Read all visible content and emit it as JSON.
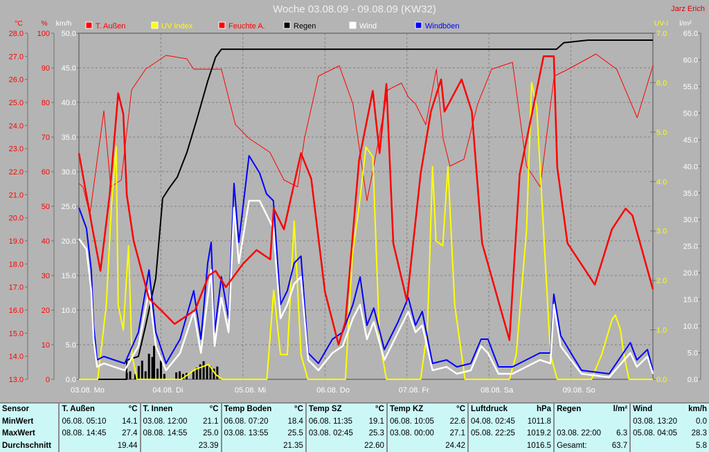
{
  "header": {
    "title": "Woche 03.08.09 - 09.08.09 (KW32)",
    "author": "Jarz Erich"
  },
  "chart_data": {
    "type": "line",
    "title": "Woche 03.08.09 - 09.08.09 (KW32)",
    "x_unit": "hours since 03.08. 00:00",
    "xlim": [
      0,
      168
    ],
    "x_tick_labels": [
      "03.08. Mo",
      "04.08. Di",
      "05.08. Mi",
      "06.08. Do",
      "07.08. Fr",
      "08.08. Sa",
      "09.08. So"
    ],
    "axes": {
      "temp": {
        "label": "°C",
        "range": [
          13,
          28
        ],
        "ticks": [
          "28.0",
          "27.0",
          "26.0",
          "25.0",
          "24.0",
          "23.0",
          "22.0",
          "21.0",
          "20.0",
          "19.0",
          "18.0",
          "17.0",
          "16.0",
          "15.0",
          "14.0",
          "13.0"
        ],
        "color": "#ff0000"
      },
      "hum": {
        "label": "%",
        "range": [
          0,
          100
        ],
        "ticks": [
          "100",
          "90",
          "80",
          "70",
          "60",
          "50",
          "40",
          "30",
          "20",
          "10",
          "0"
        ],
        "color": "#ff0000"
      },
      "wind": {
        "label": "km/h",
        "range": [
          0,
          50
        ],
        "ticks": [
          "50.0",
          "45.0",
          "40.0",
          "35.0",
          "30.0",
          "25.0",
          "20.0",
          "15.0",
          "10.0",
          "5.0",
          "0.0"
        ],
        "color": "#ffffff"
      },
      "uv": {
        "label": "UV-I",
        "range": [
          0,
          7
        ],
        "ticks": [
          "7.0",
          "6.0",
          "5.0",
          "4.0",
          "3.0",
          "2.0",
          "1.0",
          "0.0"
        ],
        "color": "#ffff00"
      },
      "rain": {
        "label": "l/m²",
        "range": [
          0,
          65
        ],
        "ticks": [
          "65.0",
          "60.0",
          "55.0",
          "50.0",
          "45.0",
          "40.0",
          "35.0",
          "30.0",
          "25.0",
          "20.0",
          "15.0",
          "10.0",
          "5.0",
          "0.0"
        ],
        "color": "#ffffff"
      }
    },
    "grid": true,
    "legend": {
      "placement": "top",
      "items": [
        {
          "label": "T. Außen",
          "color": "#ff0000"
        },
        {
          "label": "UV Index",
          "color": "#ffff00"
        },
        {
          "label": "Feuchte A.",
          "color": "#ff0000"
        },
        {
          "label": "Regen",
          "color": "#000000"
        },
        {
          "label": "Wind",
          "color": "#ffffff"
        },
        {
          "label": "Windböen",
          "color": "#0000ff"
        }
      ]
    },
    "series": [
      {
        "name": "Feuchte A.",
        "axis": "hum",
        "color": "#ff0000",
        "width": 1,
        "x": [
          0,
          1.2,
          3.2,
          7.3,
          9.3,
          12.4,
          15.4,
          19.5,
          25.5,
          31.6,
          33.6,
          38.7,
          41.7,
          45.8,
          49.8,
          55.9,
          60,
          64,
          66,
          70.1,
          76.2,
          80.2,
          84.3,
          86.3,
          90.4,
          94.4,
          96.4,
          98.5,
          101.5,
          104.6,
          106.6,
          108.6,
          112.7,
          116.7,
          120.8,
          126.9,
          131,
          135,
          139.1,
          143.2,
          151.3,
          157.4,
          163.4,
          168
        ],
        "y": [
          56.6,
          55.6,
          47.6,
          77.6,
          55.6,
          57.6,
          83.6,
          89.6,
          93.6,
          92.6,
          89.6,
          89.6,
          89.6,
          73.6,
          69.6,
          65.6,
          57.6,
          55.6,
          69.6,
          87.6,
          90.6,
          79.6,
          51.6,
          61.6,
          83.6,
          85.6,
          81.6,
          79.6,
          73.6,
          89.6,
          69.6,
          61.6,
          63.6,
          79.6,
          89.6,
          91.6,
          61.6,
          55.6,
          87.6,
          89.6,
          94,
          89.6,
          75.6,
          90.6
        ]
      },
      {
        "name": "Regen",
        "axis": "rain",
        "color": "#000000",
        "width": 2,
        "x": [
          0,
          13.9,
          14,
          17.4,
          19.5,
          22.5,
          24.5,
          26.5,
          28.8,
          31.6,
          34.6,
          37.7,
          40,
          41.7,
          139.8,
          141.9,
          149,
          168
        ],
        "y": [
          0,
          0,
          3.6,
          4.3,
          10,
          19,
          34,
          36,
          38,
          42.6,
          49,
          56,
          60.5,
          62,
          62,
          63.2,
          63.7,
          63.7
        ]
      },
      {
        "name": "UV Index",
        "axis": "uv",
        "color": "#ffff00",
        "width": 2,
        "x": [
          0,
          5.5,
          8,
          9.5,
          10.9,
          11.5,
          13,
          14.5,
          15.5,
          17,
          30,
          34,
          38,
          40,
          42,
          55,
          57,
          59,
          61,
          63,
          65,
          67,
          78,
          80,
          82,
          84,
          86,
          88,
          90,
          100,
          102,
          103.5,
          104.5,
          106.5,
          108,
          110,
          113,
          126,
          128,
          131,
          132.5,
          134,
          136,
          138,
          140,
          150,
          153,
          156,
          157,
          158.5,
          159.5,
          161,
          168
        ],
        "y": [
          0,
          0,
          1.5,
          3.5,
          4.7,
          1.5,
          1.0,
          2.7,
          0.5,
          0,
          0,
          0.2,
          0.3,
          0.1,
          0,
          0,
          1.8,
          0.5,
          0.5,
          3.2,
          0.5,
          0,
          0,
          2.5,
          3.5,
          4.7,
          4.5,
          0.8,
          0,
          0,
          1,
          4.3,
          2.8,
          2.7,
          4.3,
          1.5,
          0,
          0,
          0.5,
          3,
          6.0,
          5.5,
          3.0,
          0.5,
          0,
          0,
          0.5,
          1.2,
          1.3,
          1.0,
          0.5,
          0,
          0
        ]
      },
      {
        "name": "Windböen",
        "axis": "wind",
        "color": "#0000ff",
        "width": 2,
        "x": [
          0,
          2.2,
          3.6,
          4.3,
          5.3,
          7.3,
          10.3,
          13.4,
          17.4,
          20.5,
          22.5,
          25.5,
          29.6,
          33.6,
          35.7,
          37.7,
          38.7,
          39.7,
          41.7,
          43.8,
          45.4,
          46.8,
          49.8,
          52.9,
          54.9,
          56.9,
          59,
          61,
          63,
          65,
          67.1,
          70.1,
          74.2,
          77.2,
          80.2,
          82.3,
          84.3,
          86.3,
          89.4,
          93.4,
          96.4,
          98.5,
          100.5,
          103.5,
          107.6,
          110.6,
          114.7,
          117.7,
          119.7,
          122.8,
          126.9,
          130.9,
          134.9,
          138,
          139,
          141,
          144,
          147.1,
          155.2,
          161.4,
          163.3,
          166.4,
          168
        ],
        "y": [
          24.8,
          21.8,
          15.8,
          7.8,
          2.8,
          3.3,
          2.8,
          2.3,
          6.8,
          15.8,
          6.8,
          2.3,
          5.8,
          12.8,
          5.8,
          16.8,
          19.8,
          6.8,
          14.8,
          8.8,
          28.3,
          19.8,
          32.3,
          29.8,
          26.8,
          25.8,
          10.8,
          12.8,
          16.8,
          17.8,
          3.8,
          2.3,
          5.8,
          6.8,
          10.8,
          14.8,
          7.8,
          10.3,
          4.3,
          8.3,
          11.8,
          7.8,
          9.8,
          2.3,
          2.8,
          1.8,
          2.3,
          5.8,
          5.8,
          1.8,
          1.8,
          2.8,
          3.8,
          3.8,
          12.3,
          6.3,
          3.8,
          1.3,
          0.8,
          5.3,
          2.8,
          4.3,
          1.3
        ]
      },
      {
        "name": "Wind",
        "axis": "wind",
        "color": "#ffffff",
        "width": 2.5,
        "x": [
          0,
          2.2,
          3.6,
          4.3,
          5.3,
          7.3,
          10.3,
          13.4,
          17.4,
          20.5,
          22.5,
          25.5,
          29.6,
          33.6,
          35.7,
          37.7,
          38.7,
          39.7,
          41.7,
          43.8,
          45.4,
          46.8,
          49.8,
          52.9,
          54.9,
          56.9,
          59,
          61,
          63,
          65,
          67.1,
          70.1,
          74.2,
          77.2,
          80.2,
          82.3,
          84.3,
          86.3,
          89.4,
          93.4,
          96.4,
          98.5,
          100.5,
          103.5,
          107.6,
          110.6,
          114.7,
          117.7,
          119.7,
          122.8,
          126.9,
          130.9,
          134.9,
          138,
          139,
          141,
          144,
          147.1,
          155.2,
          161.4,
          163.3,
          166.4,
          168
        ],
        "y": [
          20.3,
          18.8,
          12.8,
          5.8,
          1.8,
          2.3,
          1.8,
          1.3,
          4.8,
          12.8,
          4.8,
          1.3,
          3.8,
          9.8,
          3.8,
          11.8,
          15.8,
          4.8,
          11.8,
          6.8,
          24.8,
          16.8,
          25.8,
          25.8,
          23.8,
          21.8,
          8.8,
          10.8,
          13.8,
          14.8,
          2.8,
          1.3,
          3.8,
          4.8,
          8.8,
          10.8,
          5.8,
          8.3,
          2.8,
          6.8,
          9.8,
          6.8,
          7.8,
          1.3,
          1.8,
          0.8,
          1.3,
          4.8,
          3.8,
          0.8,
          0.8,
          1.8,
          2.8,
          2.3,
          10.8,
          4.8,
          2.8,
          0.8,
          0.3,
          3.8,
          1.8,
          3.3,
          0.8
        ]
      },
      {
        "name": "T. Außen",
        "axis": "temp",
        "color": "#ff0000",
        "width": 2.5,
        "x": [
          0,
          4,
          6.3,
          9,
          11.5,
          13,
          14,
          16,
          20.5,
          24,
          28,
          34,
          38,
          40,
          43,
          48,
          52,
          56,
          57,
          60,
          65,
          68,
          72,
          76,
          78,
          82,
          86,
          88,
          90,
          92,
          96,
          100,
          103,
          106,
          107,
          112,
          115,
          118,
          126,
          129,
          136,
          139,
          140,
          143,
          147,
          151,
          156,
          160,
          162,
          168
        ],
        "y": [
          22.8,
          19.5,
          17.7,
          21,
          25.4,
          24.5,
          21,
          19,
          16.5,
          16.0,
          15.4,
          16,
          17.5,
          17.7,
          17.0,
          18.0,
          18.6,
          18.2,
          20.4,
          19.5,
          22.8,
          21.7,
          16.8,
          14.5,
          15.5,
          22.5,
          25.5,
          22.8,
          25.8,
          18.9,
          16.4,
          21.9,
          24.6,
          26.0,
          24.6,
          26.0,
          24.6,
          18.9,
          14.7,
          21.9,
          27.0,
          27.0,
          22.2,
          18.9,
          18.0,
          17.1,
          19.5,
          20.4,
          20.1,
          16.9
        ]
      }
    ],
    "rain_bars": {
      "axis": "rain",
      "color": "#000000",
      "x": [
        14,
        15,
        16.5,
        17.5,
        18.5,
        19.5,
        20.5,
        21.5,
        22,
        23,
        24,
        25,
        28.5,
        29.5,
        30.5,
        31.5,
        33.5,
        34.5,
        35.5,
        36.5,
        37.5,
        38.5,
        39.5,
        40.5
      ],
      "y": [
        1.2,
        1.5,
        1.0,
        2.5,
        3.5,
        1.5,
        4.8,
        4.2,
        6.3,
        2.0,
        3.5,
        1.0,
        1.3,
        1.5,
        1.0,
        1.2,
        1.5,
        2.2,
        2.8,
        3.4,
        2.6,
        2.5,
        2.0,
        2.4
      ]
    }
  },
  "stats": {
    "row_labels": [
      "Sensor",
      "MinWert",
      "MaxWert",
      "Durchschnitt"
    ],
    "columns": [
      {
        "name": "T. Außen",
        "unit": "°C",
        "min_time": "06.08.  05:10",
        "min": "14.1",
        "max_time": "08.08.  14:45",
        "max": "27.4",
        "avg_label": "",
        "avg": "19.44"
      },
      {
        "name": "T. Innen",
        "unit": "°C",
        "min_time": "03.08.  12:00",
        "min": "21.1",
        "max_time": "08.08.  14:55",
        "max": "25.0",
        "avg_label": "",
        "avg": "23.39"
      },
      {
        "name": "Temp Boden",
        "unit": "°C",
        "min_time": "06.08.  07:20",
        "min": "18.4",
        "max_time": "03.08.  13:55",
        "max": "25.5",
        "avg_label": "",
        "avg": "21.35"
      },
      {
        "name": "Temp SZ",
        "unit": "°C",
        "min_time": "06.08.  11:35",
        "min": "19.1",
        "max_time": "03.08.  02:45",
        "max": "25.3",
        "avg_label": "",
        "avg": "22.60"
      },
      {
        "name": "Temp KZ",
        "unit": "°C",
        "min_time": "06.08.  10:05",
        "min": "22.6",
        "max_time": "03.08.  00:00",
        "max": "27.1",
        "avg_label": "",
        "avg": "24.42"
      },
      {
        "name": "Luftdruck",
        "unit": "hPa",
        "min_time": "04.08.  02:45",
        "min": "1011.8",
        "max_time": "05.08.  22:25",
        "max": "1019.2",
        "avg_label": "",
        "avg": "1016.5"
      },
      {
        "name": "Regen",
        "unit": "l/m²",
        "min_time": "",
        "min": "",
        "max_time": "03.08.  22:00",
        "max": "6.3",
        "avg_label": "Gesamt:",
        "avg": "63.7"
      },
      {
        "name": "Wind",
        "unit": "km/h",
        "min_time": "03.08.  13:20",
        "min": "0.0",
        "max_time": "05.08.  04:05",
        "max": "28.3",
        "avg_label": "",
        "avg": "5.8"
      }
    ]
  }
}
